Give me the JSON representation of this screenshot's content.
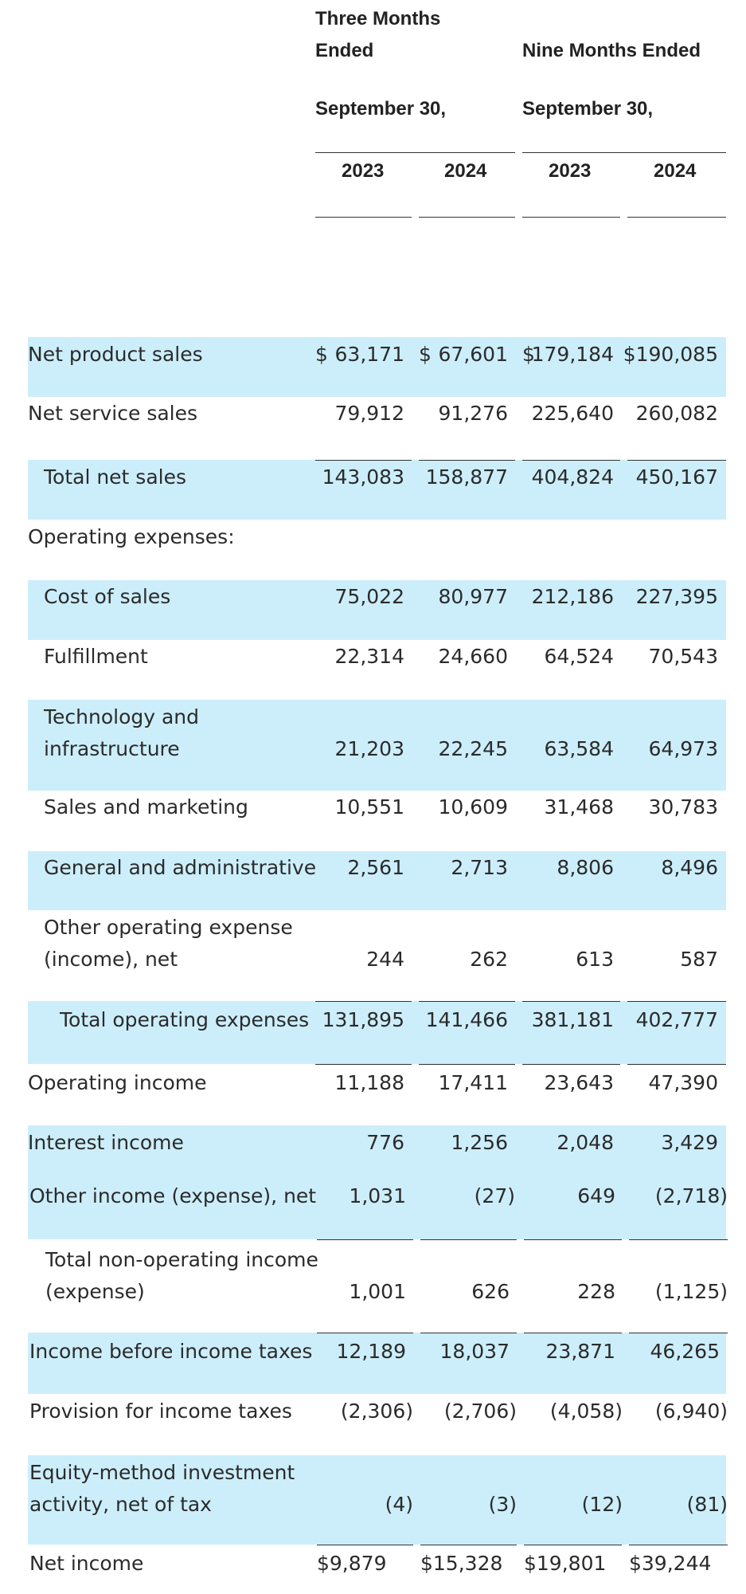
{
  "header": {
    "three_months_line1": "Three Months",
    "three_months_line2": "Ended",
    "nine_months": "Nine Months Ended",
    "period_three": "September 30,",
    "period_nine": "September 30,",
    "years": [
      "2023",
      "2024",
      "2023",
      "2024"
    ]
  },
  "rows": {
    "net_product_sales": {
      "label": "Net product sales",
      "currency": "$",
      "values": [
        "63,171",
        "67,601",
        "179,184",
        "$190,085"
      ]
    },
    "net_service_sales": {
      "label": "Net service sales",
      "values": [
        "79,912",
        "91,276",
        "225,640",
        "260,082"
      ]
    },
    "total_net_sales": {
      "label": "Total net sales",
      "values": [
        "143,083",
        "158,877",
        "404,824",
        "450,167"
      ]
    },
    "operating_expenses_heading": {
      "label": "Operating expenses:"
    },
    "cost_of_sales": {
      "label": "Cost of sales",
      "values": [
        "75,022",
        "80,977",
        "212,186",
        "227,395"
      ]
    },
    "fulfillment": {
      "label": "Fulfillment",
      "values": [
        "22,314",
        "24,660",
        "64,524",
        "70,543"
      ]
    },
    "technology": {
      "label_line1": "Technology and",
      "label_line2": "infrastructure",
      "values": [
        "21,203",
        "22,245",
        "63,584",
        "64,973"
      ]
    },
    "sales_marketing": {
      "label": "Sales and marketing",
      "values": [
        "10,551",
        "10,609",
        "31,468",
        "30,783"
      ]
    },
    "general_admin": {
      "label": "General and administrative",
      "values": [
        "2,561",
        "2,713",
        "8,806",
        "8,496"
      ]
    },
    "other_operating": {
      "label_line1": "Other operating expense",
      "label_line2": "(income), net",
      "values": [
        "244",
        "262",
        "613",
        "587"
      ]
    },
    "total_operating_expenses": {
      "label": "Total operating expenses",
      "values": [
        "131,895",
        "141,466",
        "381,181",
        "402,777"
      ]
    },
    "operating_income": {
      "label": "Operating income",
      "values": [
        "11,188",
        "17,411",
        "23,643",
        "47,390"
      ]
    },
    "interest_income": {
      "label": "Interest income",
      "values": [
        "776",
        "1,256",
        "2,048",
        "3,429"
      ]
    },
    "other_income": {
      "label": "Other income (expense), net",
      "values": [
        "1,031",
        "(27)",
        "649",
        "(2,718)"
      ]
    },
    "total_non_operating": {
      "label_line1": "Total non-operating income",
      "label_line2": "(expense)",
      "values": [
        "1,001",
        "626",
        "228",
        "(1,125)"
      ]
    },
    "income_before_taxes": {
      "label": "Income before income taxes",
      "values": [
        "12,189",
        "18,037",
        "23,871",
        "46,265"
      ]
    },
    "provision_taxes": {
      "label": "Provision for income taxes",
      "values": [
        "(2,306)",
        "(2,706)",
        "(4,058)",
        "(6,940)"
      ]
    },
    "equity_method": {
      "label_line1": "Equity-method investment",
      "label_line2": "activity, net of tax",
      "values": [
        "(4)",
        "(3)",
        "(12)",
        "(81)"
      ]
    },
    "net_income": {
      "label": "Net income",
      "values": [
        "$9,879",
        "$15,328",
        "$19,801",
        "$39,244"
      ]
    }
  }
}
